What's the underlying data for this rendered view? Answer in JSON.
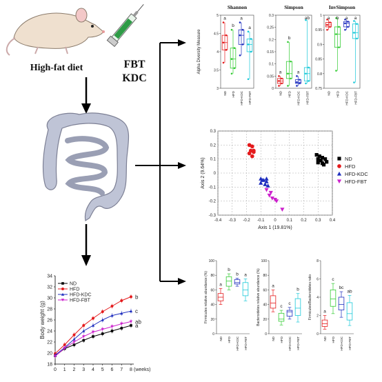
{
  "left": {
    "treatment_line1": "FBT",
    "treatment_line2": "KDC",
    "diet_label": "High-fat diet"
  },
  "colors": {
    "ND": "#000000",
    "HFD": "#e41a1c",
    "HFD-KDC": "#1f2fbf",
    "HFD-FBT": "#cc22cc",
    "cyan": "#18c8d8",
    "green": "#33cc33",
    "gut": "#bfc4d6",
    "mouse": "#efe0cf"
  },
  "groups": [
    "ND",
    "HFD",
    "HFD-KDC",
    "HFD-FBT"
  ],
  "alpha": {
    "ylabel": "Alpha Diversity Measure",
    "panels": [
      {
        "title": "Shannon",
        "ylim": [
          3.0,
          5.0
        ],
        "ticks": [
          3.0,
          3.5,
          4.0,
          4.5,
          5.0
        ],
        "letters": [
          "a",
          "b",
          "a",
          "a"
        ],
        "boxes": [
          [
            3.7,
            4.05,
            4.25,
            4.45,
            4.8
          ],
          [
            3.4,
            3.55,
            3.8,
            4.1,
            4.6
          ],
          [
            3.9,
            4.2,
            4.45,
            4.6,
            4.8
          ],
          [
            3.25,
            4.0,
            4.2,
            4.35,
            4.55
          ]
        ]
      },
      {
        "title": "Simpson",
        "ylim": [
          0.0,
          0.3
        ],
        "ticks": [
          0.0,
          0.05,
          0.1,
          0.15,
          0.2,
          0.25,
          0.3
        ],
        "letters": [
          "a",
          "b",
          "a",
          "ab"
        ],
        "boxes": [
          [
            0.01,
            0.02,
            0.03,
            0.04,
            0.05
          ],
          [
            0.01,
            0.04,
            0.06,
            0.11,
            0.19
          ],
          [
            0.01,
            0.02,
            0.025,
            0.035,
            0.05
          ],
          [
            0.02,
            0.03,
            0.06,
            0.085,
            0.28
          ]
        ]
      },
      {
        "title": "InvSimpson",
        "ylim": [
          0.75,
          1.0
        ],
        "ticks": [
          0.75,
          0.8,
          0.85,
          0.9,
          0.95,
          1.0
        ],
        "letters": [
          "a",
          "b",
          "a",
          "a"
        ],
        "boxes": [
          [
            0.95,
            0.96,
            0.967,
            0.975,
            0.985
          ],
          [
            0.81,
            0.89,
            0.935,
            0.96,
            0.99
          ],
          [
            0.95,
            0.96,
            0.972,
            0.978,
            0.985
          ],
          [
            0.77,
            0.92,
            0.94,
            0.97,
            0.98
          ]
        ]
      }
    ]
  },
  "pcoa": {
    "xlabel": "Axis 1 (19.81%)",
    "ylabel": "Axis 2 (9.64%)",
    "xticks": [
      -0.4,
      -0.3,
      -0.2,
      -0.1,
      0.0,
      0.1,
      0.2,
      0.3,
      0.4
    ],
    "yticks": [
      -0.3,
      -0.2,
      -0.1,
      0.0,
      0.1,
      0.2,
      0.3
    ],
    "xlim": [
      -0.4,
      0.4
    ],
    "ylim": [
      -0.3,
      0.3
    ],
    "legend_position": "right",
    "points": {
      "ND": [
        [
          0.29,
          0.13
        ],
        [
          0.31,
          0.12
        ],
        [
          0.33,
          0.11
        ],
        [
          0.3,
          0.1
        ],
        [
          0.32,
          0.09
        ],
        [
          0.35,
          0.1
        ],
        [
          0.33,
          0.07
        ],
        [
          0.3,
          0.075
        ],
        [
          0.36,
          0.08
        ],
        [
          0.34,
          0.06
        ]
      ],
      "HFD": [
        [
          -0.18,
          0.2
        ],
        [
          -0.16,
          0.19
        ],
        [
          -0.17,
          0.16
        ],
        [
          -0.15,
          0.15
        ],
        [
          -0.18,
          0.14
        ],
        [
          -0.16,
          0.12
        ],
        [
          -0.15,
          0.16
        ]
      ],
      "HFD-KDC": [
        [
          -0.1,
          -0.04
        ],
        [
          -0.08,
          -0.05
        ],
        [
          -0.06,
          -0.04
        ],
        [
          -0.1,
          -0.07
        ],
        [
          -0.07,
          -0.08
        ],
        [
          -0.05,
          -0.09
        ],
        [
          -0.09,
          -0.05
        ],
        [
          -0.06,
          -0.06
        ]
      ],
      "HFD-FBT": [
        [
          -0.06,
          -0.12
        ],
        [
          -0.03,
          -0.14
        ],
        [
          -0.02,
          -0.18
        ],
        [
          0.0,
          -0.19
        ],
        [
          0.01,
          -0.2
        ],
        [
          0.05,
          -0.26
        ],
        [
          -0.04,
          -0.16
        ]
      ]
    }
  },
  "abundance": {
    "panels": [
      {
        "ylabel": "Firmicutes relative abundance (%)",
        "ylim": [
          0,
          100
        ],
        "ticks": [
          0,
          20,
          40,
          60,
          80,
          100
        ],
        "letters": [
          "a",
          "b",
          "b",
          "a"
        ],
        "boxes": [
          [
            40,
            45,
            50,
            55,
            62
          ],
          [
            60,
            65,
            72,
            78,
            82
          ],
          [
            65,
            68,
            70,
            74,
            76
          ],
          [
            45,
            52,
            60,
            70,
            75
          ]
        ]
      },
      {
        "ylabel": "Bacteroidetes relative abundance (%)",
        "ylim": [
          0,
          100
        ],
        "ticks": [
          0,
          20,
          40,
          60,
          80,
          100
        ],
        "letters": [
          "a",
          "c",
          "c",
          "b"
        ],
        "boxes": [
          [
            30,
            35,
            42,
            52,
            60
          ],
          [
            12,
            17,
            20,
            28,
            32
          ],
          [
            20,
            24,
            30,
            32,
            36
          ],
          [
            16,
            25,
            35,
            48,
            55
          ]
        ]
      },
      {
        "ylabel": "Firmicutes/Bacteroidetes ratio",
        "ylim": [
          0,
          8
        ],
        "ticks": [
          0,
          2,
          4,
          6,
          8
        ],
        "letters": [
          "a",
          "c",
          "bc",
          "ab"
        ],
        "boxes": [
          [
            0.5,
            0.8,
            1.1,
            1.5,
            2.0
          ],
          [
            2.2,
            3.0,
            3.8,
            4.8,
            5.5
          ],
          [
            1.8,
            2.6,
            3.2,
            4.0,
            4.6
          ],
          [
            0.9,
            1.5,
            2.2,
            3.4,
            4.2
          ]
        ]
      }
    ]
  },
  "body_weight": {
    "ylabel": "Body weight (g)",
    "xunit": "(weeks)",
    "xticks": [
      0,
      1,
      2,
      3,
      4,
      5,
      6,
      7,
      8
    ],
    "yticks": [
      18,
      20,
      22,
      24,
      26,
      28,
      30,
      32,
      34
    ],
    "ylim": [
      18,
      34
    ],
    "letters": [
      "a",
      "b",
      "c",
      "ab"
    ],
    "chart_data": {
      "type": "line",
      "x": [
        0,
        1,
        2,
        3,
        4,
        5,
        6,
        7,
        8
      ],
      "series": [
        {
          "name": "ND",
          "values": [
            19.5,
            20.8,
            21.5,
            22.3,
            23.0,
            23.5,
            24.0,
            24.5,
            25.0
          ]
        },
        {
          "name": "HFD",
          "values": [
            19.9,
            21.5,
            23.3,
            25.0,
            26.3,
            27.5,
            28.5,
            29.5,
            30.2
          ]
        },
        {
          "name": "HFD-KDC",
          "values": [
            19.6,
            21.0,
            22.5,
            24.0,
            25.0,
            26.0,
            26.8,
            27.2,
            27.6
          ]
        },
        {
          "name": "HFD-FBT",
          "values": [
            19.4,
            20.9,
            22.0,
            23.0,
            23.8,
            24.3,
            24.8,
            25.3,
            25.7
          ]
        }
      ]
    }
  }
}
